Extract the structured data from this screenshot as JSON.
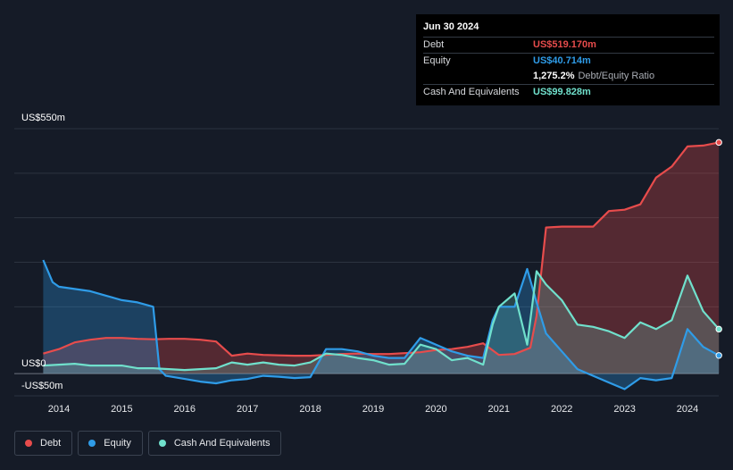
{
  "chart_data": {
    "type": "area",
    "title": "",
    "xlabel": "",
    "ylabel": "",
    "ylim": [
      -50,
      550
    ],
    "y_tick_labels": [
      "US$550m",
      "US$0",
      "-US$50m"
    ],
    "x_tick_labels": [
      "2014",
      "2015",
      "2016",
      "2017",
      "2018",
      "2019",
      "2020",
      "2021",
      "2022",
      "2023",
      "2024"
    ],
    "legend_position": "bottom-left",
    "grid": true,
    "x_range": [
      2013.5,
      2024.5
    ],
    "series": [
      {
        "name": "Debt",
        "color": "#e74c4c",
        "x": [
          2013.75,
          2014.0,
          2014.25,
          2014.5,
          2014.75,
          2015.0,
          2015.25,
          2015.5,
          2015.75,
          2016.0,
          2016.25,
          2016.5,
          2016.75,
          2017.0,
          2017.25,
          2017.5,
          2017.75,
          2018.0,
          2018.25,
          2018.5,
          2018.75,
          2019.0,
          2019.25,
          2019.5,
          2019.75,
          2020.0,
          2020.25,
          2020.5,
          2020.75,
          2021.0,
          2021.25,
          2021.5,
          2021.6,
          2021.75,
          2022.0,
          2022.25,
          2022.5,
          2022.75,
          2023.0,
          2023.25,
          2023.5,
          2023.75,
          2024.0,
          2024.25,
          2024.5
        ],
        "values": [
          45,
          55,
          70,
          76,
          80,
          80,
          78,
          77,
          78,
          78,
          76,
          72,
          40,
          45,
          42,
          41,
          40,
          40,
          42,
          44,
          45,
          44,
          44,
          46,
          48,
          53,
          55,
          60,
          68,
          42,
          44,
          58,
          130,
          328,
          330,
          330,
          330,
          365,
          368,
          380,
          440,
          465,
          510,
          512,
          519.17
        ]
      },
      {
        "name": "Equity",
        "color": "#2f9ce8",
        "x": [
          2013.75,
          2013.9,
          2014.0,
          2014.25,
          2014.5,
          2014.75,
          2015.0,
          2015.25,
          2015.5,
          2015.6,
          2015.7,
          2016.0,
          2016.25,
          2016.5,
          2016.75,
          2017.0,
          2017.25,
          2017.5,
          2017.75,
          2018.0,
          2018.25,
          2018.5,
          2018.75,
          2019.0,
          2019.25,
          2019.5,
          2019.75,
          2020.0,
          2020.25,
          2020.5,
          2020.75,
          2020.9,
          2021.0,
          2021.25,
          2021.45,
          2021.6,
          2021.75,
          2022.0,
          2022.25,
          2022.5,
          2022.75,
          2023.0,
          2023.25,
          2023.5,
          2023.75,
          2024.0,
          2024.25,
          2024.5
        ],
        "values": [
          255,
          205,
          195,
          190,
          185,
          175,
          165,
          160,
          150,
          10,
          -5,
          -12,
          -18,
          -22,
          -15,
          -12,
          -5,
          -7,
          -10,
          -8,
          55,
          55,
          50,
          40,
          35,
          35,
          80,
          65,
          50,
          40,
          35,
          120,
          150,
          150,
          235,
          160,
          90,
          50,
          10,
          -5,
          -20,
          -35,
          -10,
          -15,
          -10,
          100,
          60,
          40.714
        ]
      },
      {
        "name": "Cash And Equivalents",
        "color": "#70e0cc",
        "x": [
          2013.75,
          2014.0,
          2014.25,
          2014.5,
          2014.75,
          2015.0,
          2015.25,
          2015.5,
          2015.75,
          2016.0,
          2016.25,
          2016.5,
          2016.75,
          2017.0,
          2017.25,
          2017.5,
          2017.75,
          2018.0,
          2018.25,
          2018.5,
          2018.75,
          2019.0,
          2019.25,
          2019.5,
          2019.75,
          2020.0,
          2020.25,
          2020.5,
          2020.75,
          2020.9,
          2021.0,
          2021.25,
          2021.45,
          2021.6,
          2021.75,
          2022.0,
          2022.25,
          2022.5,
          2022.75,
          2023.0,
          2023.25,
          2023.5,
          2023.75,
          2024.0,
          2024.25,
          2024.5
        ],
        "values": [
          18,
          20,
          22,
          18,
          18,
          18,
          12,
          12,
          10,
          8,
          10,
          12,
          25,
          20,
          25,
          20,
          18,
          25,
          45,
          42,
          35,
          30,
          20,
          22,
          65,
          55,
          30,
          35,
          20,
          110,
          150,
          180,
          65,
          230,
          200,
          165,
          110,
          105,
          95,
          80,
          115,
          100,
          120,
          220,
          140,
          99.828
        ]
      }
    ]
  },
  "tooltip": {
    "date": "Jun 30 2024",
    "rows": [
      {
        "label": "Debt",
        "value": "US$519.170m",
        "color": "#e74c4c"
      },
      {
        "label": "Equity",
        "value": "US$40.714m",
        "color": "#2f9ce8"
      },
      {
        "label": "",
        "value": "1,275.2%",
        "suffix": "Debt/Equity Ratio",
        "color": "#ffffff"
      },
      {
        "label": "Cash And Equivalents",
        "value": "US$99.828m",
        "color": "#70e0cc"
      }
    ]
  },
  "legend": [
    {
      "label": "Debt",
      "color": "#e74c4c"
    },
    {
      "label": "Equity",
      "color": "#2f9ce8"
    },
    {
      "label": "Cash And Equivalents",
      "color": "#70e0cc"
    }
  ]
}
